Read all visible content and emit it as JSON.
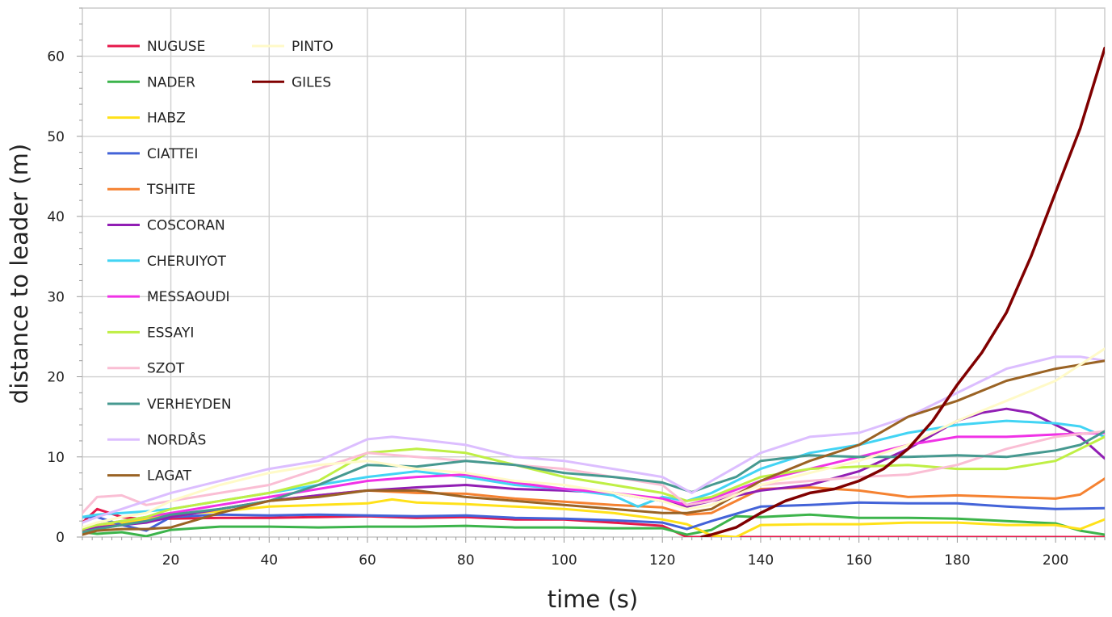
{
  "chart_data": {
    "type": "line",
    "xlabel": "time (s)",
    "ylabel": "distance to leader (m)",
    "xlim": [
      2,
      210
    ],
    "ylim": [
      0,
      66
    ],
    "x_ticks": [
      20,
      40,
      60,
      80,
      100,
      120,
      140,
      160,
      180,
      200
    ],
    "y_ticks": [
      0,
      10,
      20,
      30,
      40,
      50,
      60
    ],
    "grid": true,
    "legend_position": "top-left",
    "legend_columns": 2,
    "series": [
      {
        "name": "NUGUSE",
        "color": "#e6194b",
        "x": [
          2,
          5,
          10,
          15,
          20,
          30,
          40,
          50,
          60,
          70,
          80,
          90,
          100,
          110,
          120,
          125,
          130,
          140,
          150,
          160,
          170,
          180,
          190,
          200,
          210
        ],
        "y": [
          1.8,
          3.5,
          2.5,
          2.2,
          2.3,
          2.4,
          2.4,
          2.5,
          2.6,
          2.4,
          2.5,
          2.2,
          2.2,
          1.8,
          1.4,
          0,
          0,
          0,
          0,
          0,
          0,
          0,
          0,
          0,
          0
        ]
      },
      {
        "name": "NADER",
        "color": "#3cb44b",
        "x": [
          2,
          5,
          10,
          15,
          20,
          30,
          40,
          50,
          60,
          70,
          80,
          90,
          100,
          110,
          120,
          125,
          130,
          135,
          140,
          150,
          160,
          170,
          180,
          190,
          200,
          205,
          210
        ],
        "y": [
          0.6,
          0.4,
          0.6,
          0.1,
          0.9,
          1.3,
          1.3,
          1.2,
          1.3,
          1.3,
          1.4,
          1.2,
          1.2,
          1.1,
          1.1,
          0.3,
          0.9,
          2.6,
          2.5,
          2.8,
          2.4,
          2.4,
          2.3,
          2.0,
          1.7,
          0.8,
          0.3
        ]
      },
      {
        "name": "HABZ",
        "color": "#ffe119",
        "x": [
          2,
          5,
          10,
          15,
          20,
          30,
          40,
          50,
          60,
          65,
          70,
          80,
          90,
          100,
          110,
          120,
          125,
          130,
          135,
          140,
          150,
          160,
          170,
          180,
          190,
          200,
          205,
          210
        ],
        "y": [
          1.0,
          1.4,
          1.8,
          2.2,
          2.8,
          3.2,
          3.8,
          4.0,
          4.2,
          4.7,
          4.3,
          4.1,
          3.8,
          3.5,
          3.0,
          2.2,
          1.6,
          0.2,
          0,
          1.5,
          1.6,
          1.6,
          1.8,
          1.8,
          1.5,
          1.5,
          1.0,
          2.2
        ]
      },
      {
        "name": "CIATTEI",
        "color": "#4363d8",
        "x": [
          2,
          5,
          10,
          15,
          20,
          30,
          40,
          50,
          60,
          70,
          80,
          90,
          100,
          110,
          120,
          125,
          130,
          140,
          150,
          160,
          170,
          180,
          190,
          200,
          210
        ],
        "y": [
          2.5,
          2.5,
          1.5,
          0.8,
          2.5,
          2.8,
          2.7,
          2.8,
          2.7,
          2.6,
          2.7,
          2.4,
          2.3,
          2.1,
          1.8,
          1.0,
          2.0,
          3.8,
          4.0,
          4.3,
          4.2,
          4.2,
          3.8,
          3.5,
          3.6
        ]
      },
      {
        "name": "TSHITE",
        "color": "#f58231",
        "x": [
          2,
          5,
          10,
          15,
          20,
          30,
          40,
          50,
          60,
          70,
          80,
          90,
          100,
          110,
          120,
          125,
          130,
          140,
          150,
          160,
          170,
          180,
          190,
          200,
          205,
          210
        ],
        "y": [
          0.7,
          1.0,
          1.5,
          2.0,
          2.5,
          3.5,
          4.5,
          5.2,
          5.8,
          5.5,
          5.4,
          4.8,
          4.4,
          4.0,
          3.7,
          2.8,
          3.0,
          6.0,
          6.2,
          5.8,
          5.0,
          5.2,
          5.0,
          4.8,
          5.3,
          7.3
        ]
      },
      {
        "name": "COSCORAN",
        "color": "#911eb4",
        "x": [
          2,
          5,
          10,
          15,
          20,
          30,
          40,
          50,
          60,
          70,
          80,
          90,
          100,
          110,
          120,
          125,
          130,
          140,
          150,
          160,
          170,
          180,
          185,
          190,
          195,
          200,
          205,
          210
        ],
        "y": [
          1.0,
          1.2,
          1.5,
          1.8,
          2.5,
          3.5,
          4.5,
          5.2,
          5.8,
          6.2,
          6.5,
          6.0,
          5.8,
          5.5,
          4.5,
          3.8,
          4.5,
          5.8,
          6.5,
          8.2,
          11.0,
          14.5,
          15.5,
          16.0,
          15.5,
          14.0,
          12.5,
          9.8
        ]
      },
      {
        "name": "CHERUIYOT",
        "color": "#42d4f4",
        "x": [
          2,
          5,
          10,
          15,
          20,
          30,
          40,
          50,
          60,
          70,
          80,
          90,
          100,
          110,
          115,
          120,
          125,
          130,
          140,
          150,
          160,
          170,
          180,
          190,
          200,
          205,
          210
        ],
        "y": [
          2.5,
          2.8,
          3.0,
          3.2,
          3.5,
          4.5,
          5.5,
          6.5,
          7.5,
          8.2,
          7.5,
          6.5,
          6.0,
          5.2,
          3.8,
          5.0,
          4.5,
          5.5,
          8.5,
          10.5,
          11.5,
          13.0,
          14.0,
          14.5,
          14.2,
          13.8,
          12.5
        ]
      },
      {
        "name": "MESSAOUDI",
        "color": "#f032e6",
        "x": [
          2,
          5,
          10,
          15,
          20,
          30,
          40,
          50,
          60,
          70,
          80,
          90,
          100,
          110,
          120,
          125,
          130,
          140,
          150,
          160,
          170,
          180,
          190,
          200,
          210
        ],
        "y": [
          1.2,
          1.5,
          2.0,
          2.5,
          3.0,
          4.0,
          5.0,
          6.0,
          7.0,
          7.5,
          7.8,
          6.8,
          6.0,
          5.5,
          4.8,
          4.0,
          4.8,
          7.0,
          8.5,
          10.0,
          11.5,
          12.5,
          12.5,
          12.8,
          13.0
        ]
      },
      {
        "name": "ESSAYI",
        "color": "#bfef45",
        "x": [
          2,
          5,
          10,
          15,
          20,
          30,
          40,
          50,
          60,
          70,
          80,
          90,
          100,
          110,
          120,
          125,
          130,
          140,
          150,
          160,
          170,
          180,
          190,
          200,
          205,
          210
        ],
        "y": [
          1.0,
          1.5,
          2.0,
          2.5,
          3.5,
          4.5,
          5.5,
          7.0,
          10.5,
          11.0,
          10.5,
          9.0,
          7.5,
          6.5,
          5.5,
          4.5,
          5.0,
          7.5,
          8.5,
          8.8,
          9.0,
          8.5,
          8.5,
          9.5,
          11.0,
          12.5
        ]
      },
      {
        "name": "SZOT",
        "color": "#fabed4",
        "x": [
          2,
          5,
          10,
          15,
          20,
          30,
          40,
          50,
          60,
          70,
          80,
          90,
          100,
          110,
          120,
          125,
          130,
          140,
          150,
          160,
          170,
          180,
          190,
          200,
          210
        ],
        "y": [
          3.0,
          5.0,
          5.2,
          4.0,
          4.5,
          5.5,
          6.5,
          8.5,
          10.5,
          10.0,
          9.5,
          9.0,
          8.5,
          7.5,
          6.5,
          4.0,
          4.5,
          6.5,
          7.0,
          7.5,
          7.8,
          9.0,
          11.0,
          12.5,
          13.2
        ]
      },
      {
        "name": "VERHEYDEN",
        "color": "#469990",
        "x": [
          2,
          5,
          10,
          15,
          20,
          30,
          40,
          50,
          60,
          70,
          80,
          90,
          100,
          110,
          120,
          126,
          130,
          135,
          140,
          150,
          160,
          170,
          180,
          190,
          200,
          205,
          210
        ],
        "y": [
          0.6,
          1.0,
          1.5,
          2.0,
          2.8,
          3.5,
          4.5,
          6.5,
          9.0,
          8.8,
          9.5,
          9.0,
          8.0,
          7.5,
          6.8,
          5.6,
          6.5,
          7.5,
          9.5,
          10.2,
          10.0,
          10.0,
          10.2,
          10.0,
          10.8,
          11.5,
          13.2
        ]
      },
      {
        "name": "NORDÅS",
        "color": "#dcbeff",
        "x": [
          2,
          5,
          10,
          15,
          20,
          30,
          40,
          50,
          60,
          65,
          70,
          80,
          90,
          100,
          110,
          120,
          126,
          130,
          140,
          150,
          160,
          170,
          180,
          190,
          200,
          205,
          210
        ],
        "y": [
          1.8,
          2.5,
          3.5,
          4.5,
          5.5,
          7.0,
          8.5,
          9.5,
          12.2,
          12.5,
          12.2,
          11.5,
          10.0,
          9.5,
          8.5,
          7.5,
          5.5,
          7.0,
          10.5,
          12.5,
          13.0,
          15.0,
          18.0,
          21.0,
          22.5,
          22.5,
          22.0
        ]
      },
      {
        "name": "LAGAT",
        "color": "#9a6324",
        "x": [
          2,
          5,
          10,
          15,
          20,
          30,
          40,
          50,
          60,
          70,
          80,
          90,
          100,
          110,
          120,
          125,
          130,
          140,
          150,
          160,
          170,
          180,
          190,
          200,
          210
        ],
        "y": [
          0.3,
          0.8,
          1.0,
          1.0,
          1.2,
          3.0,
          4.5,
          5.0,
          5.8,
          5.8,
          5.0,
          4.5,
          4.0,
          3.5,
          3.0,
          3.0,
          3.5,
          7.0,
          9.5,
          11.5,
          15.0,
          17.0,
          19.5,
          21.0,
          22.0
        ]
      },
      {
        "name": "PINTO",
        "color": "#fffac8",
        "x": [
          2,
          5,
          10,
          15,
          20,
          30,
          40,
          50,
          60,
          70,
          80,
          90,
          100,
          110,
          120,
          125,
          130,
          140,
          150,
          160,
          170,
          180,
          190,
          200,
          205,
          210
        ],
        "y": [
          1.2,
          1.8,
          2.5,
          3.0,
          4.5,
          6.5,
          8.0,
          9.0,
          9.5,
          8.5,
          8.0,
          7.0,
          6.5,
          5.5,
          4.5,
          3.5,
          4.0,
          6.5,
          8.0,
          9.5,
          11.5,
          14.5,
          17.0,
          19.5,
          21.5,
          23.5
        ]
      },
      {
        "name": "GILES",
        "color": "#800000",
        "x": [
          128,
          130,
          135,
          140,
          145,
          150,
          155,
          160,
          165,
          170,
          175,
          180,
          185,
          190,
          195,
          200,
          205,
          210
        ],
        "y": [
          0,
          0.3,
          1.2,
          3.0,
          4.5,
          5.5,
          6.0,
          7.0,
          8.5,
          11.0,
          14.5,
          19.0,
          23.0,
          28.0,
          35.0,
          43.0,
          51.0,
          61.0
        ]
      }
    ]
  }
}
